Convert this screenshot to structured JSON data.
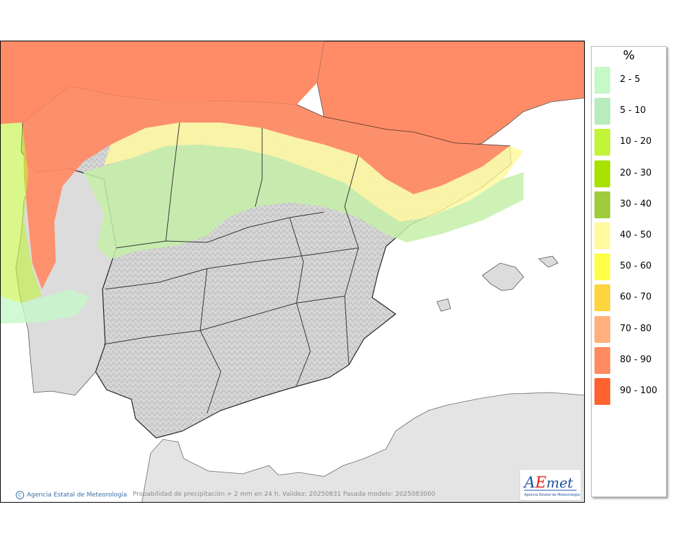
{
  "legend": {
    "unit": "%",
    "items": [
      {
        "label": "2 - 5",
        "color": "#c6f8c8"
      },
      {
        "label": "5 - 10",
        "color": "#b8ecbc"
      },
      {
        "label": "10 - 20",
        "color": "#c2f43a"
      },
      {
        "label": "20 - 30",
        "color": "#a8e200"
      },
      {
        "label": "30 - 40",
        "color": "#9ecc3c"
      },
      {
        "label": "40 - 50",
        "color": "#fff9a0"
      },
      {
        "label": "50 - 60",
        "color": "#ffff4a"
      },
      {
        "label": "60 - 70",
        "color": "#ffd43c"
      },
      {
        "label": "70 - 80",
        "color": "#ffb07c"
      },
      {
        "label": "80 - 90",
        "color": "#ff8a60"
      },
      {
        "label": "90 - 100",
        "color": "#ff6330"
      }
    ]
  },
  "footer": {
    "credit": "Agencia Estatal de Meteorología",
    "caption": "Probabilidad de precipitación > 2 mm en 24 h. Validez: 20250831 Pasada modelo: 2025083000"
  },
  "logo": {
    "text": "AEmet",
    "subtext": "Agencia Estatal de Meteorología"
  },
  "colors": {
    "sea": "#ffffff",
    "land": "#dcdcdc",
    "border": "#222222"
  }
}
